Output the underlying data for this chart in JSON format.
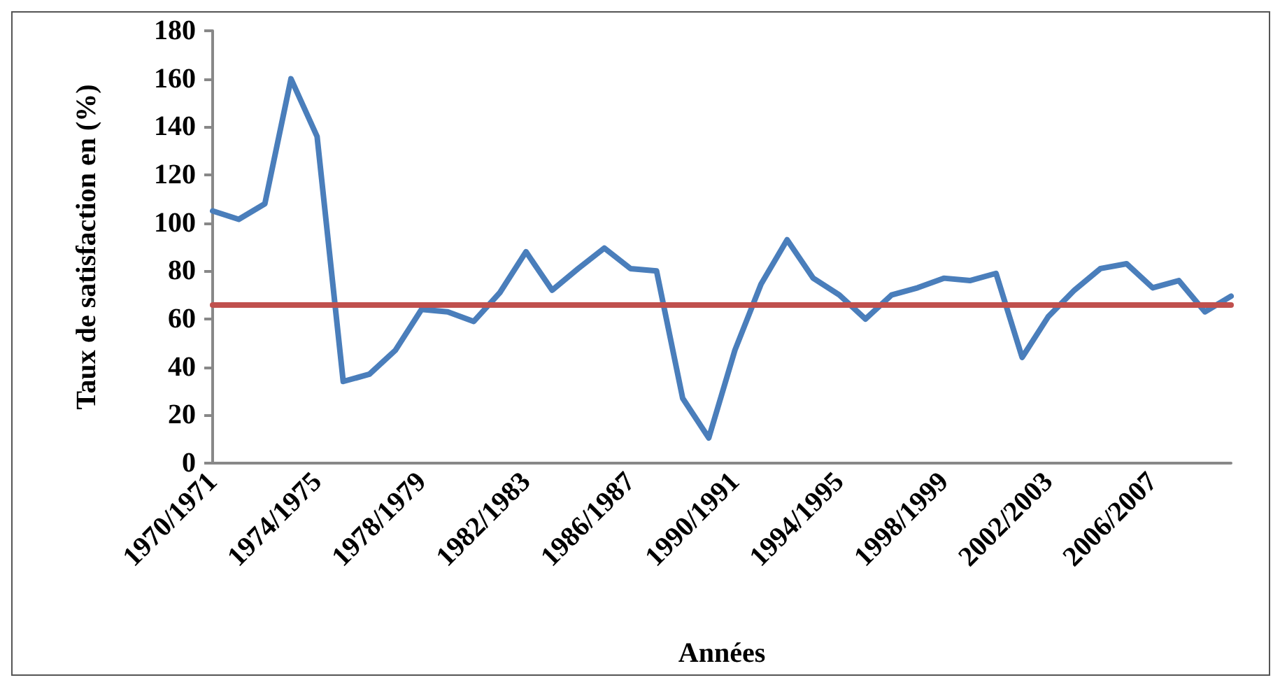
{
  "chart_data": {
    "type": "line",
    "xlabel": "Années",
    "ylabel": "Taux de satisfaction en (%)",
    "categories": [
      "1970/1971",
      null,
      null,
      null,
      "1974/1975",
      null,
      null,
      null,
      "1978/1979",
      null,
      null,
      null,
      "1982/1983",
      null,
      null,
      null,
      "1986/1987",
      null,
      null,
      null,
      "1990/1991",
      null,
      null,
      null,
      "1994/1995",
      null,
      null,
      null,
      "1998/1999",
      null,
      null,
      null,
      "2002/2003",
      null,
      null,
      null,
      "2006/2007",
      null,
      null,
      null
    ],
    "series": [
      {
        "color": "#4a7ebb",
        "values": [
          105,
          101.5,
          108,
          160,
          136,
          34,
          37,
          47,
          64,
          63,
          59,
          71,
          88,
          72,
          81,
          89.5,
          81,
          80,
          27,
          10.5,
          47,
          74.5,
          93,
          77,
          70,
          60,
          70,
          73,
          77,
          76,
          79,
          44,
          61,
          72,
          81,
          83,
          73,
          76,
          63,
          69.5
        ]
      }
    ],
    "ref_lines": [
      {
        "axis": "y",
        "value": 66,
        "color": "#c0504d",
        "line_style": "solid"
      }
    ],
    "ylim": [
      0,
      180
    ],
    "yticks": [
      0,
      20,
      40,
      60,
      80,
      100,
      120,
      140,
      160,
      180
    ],
    "grid": false,
    "marker": "none",
    "line_style": "solid"
  }
}
